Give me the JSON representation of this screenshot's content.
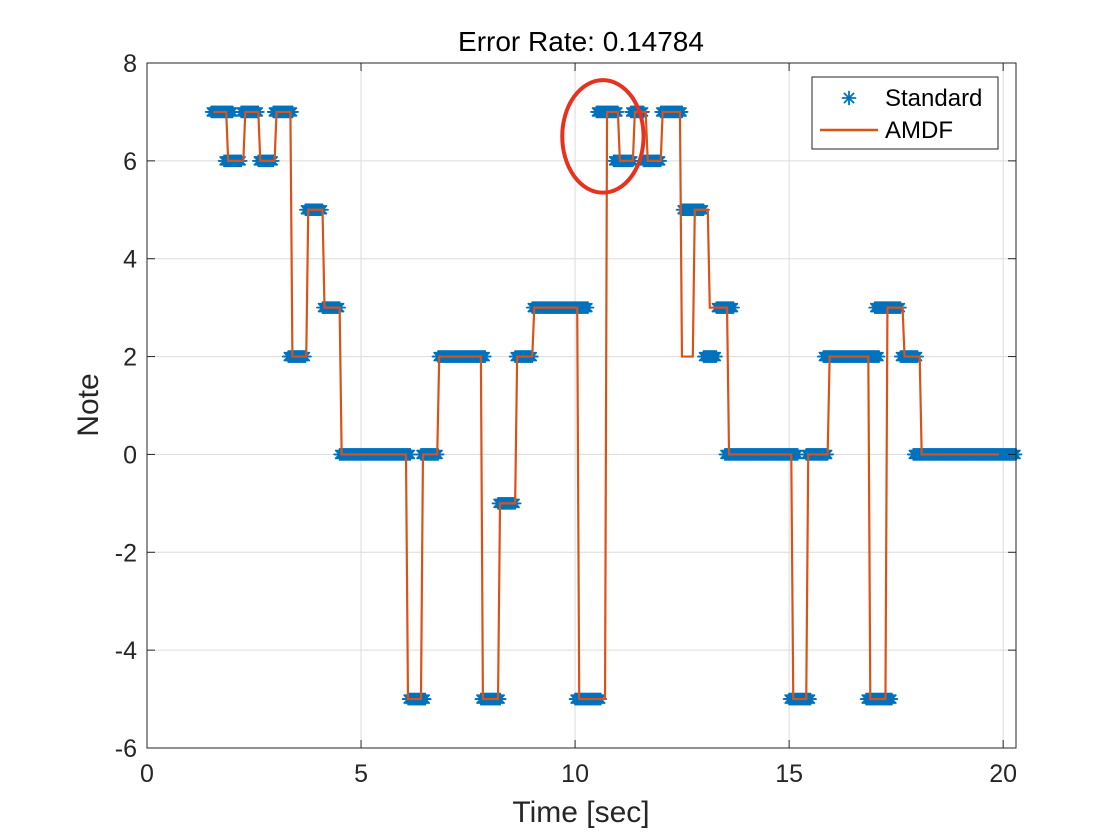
{
  "chart_data": {
    "type": "line",
    "title": "Error Rate: 0.14784",
    "xlabel": "Time [sec]",
    "ylabel": "Note",
    "xlim": [
      0,
      20.3
    ],
    "ylim": [
      -6,
      8
    ],
    "xticks": [
      0,
      5,
      10,
      15,
      20
    ],
    "yticks": [
      -6,
      -4,
      -2,
      0,
      2,
      4,
      6,
      8
    ],
    "xtick_labels": [
      "0",
      "5",
      "10",
      "15",
      "20"
    ],
    "ytick_labels": [
      "-6",
      "-4",
      "-2",
      "0",
      "2",
      "4",
      "6",
      "8"
    ],
    "grid": true,
    "legend_position": "top-right",
    "colors": {
      "standard": "#0072BD",
      "amdf": "#D95319",
      "highlight": "#e8321e"
    },
    "annotation": {
      "type": "ellipse",
      "center": [
        10.65,
        6.5
      ],
      "note_span": [
        0.95,
        1.15
      ]
    },
    "series": [
      {
        "name": "Standard",
        "marker": "asterisk",
        "segments": [
          [
            1.5,
            2.0,
            7
          ],
          [
            1.8,
            2.2,
            6
          ],
          [
            2.2,
            2.6,
            7
          ],
          [
            2.6,
            2.95,
            6
          ],
          [
            2.95,
            3.4,
            7
          ],
          [
            3.3,
            3.7,
            2
          ],
          [
            3.7,
            4.1,
            5
          ],
          [
            4.1,
            4.5,
            3
          ],
          [
            4.5,
            6.15,
            0
          ],
          [
            6.1,
            6.5,
            -5
          ],
          [
            6.4,
            6.8,
            0
          ],
          [
            6.8,
            7.9,
            2
          ],
          [
            7.8,
            8.25,
            -5
          ],
          [
            8.2,
            8.6,
            -1
          ],
          [
            8.6,
            9.0,
            2
          ],
          [
            9.0,
            10.3,
            3
          ],
          [
            10.0,
            10.6,
            -5
          ],
          [
            10.5,
            11.0,
            7
          ],
          [
            10.9,
            11.35,
            6
          ],
          [
            11.3,
            11.6,
            7
          ],
          [
            11.6,
            12.0,
            6
          ],
          [
            12.0,
            12.5,
            7
          ],
          [
            12.5,
            13.0,
            5
          ],
          [
            13.0,
            13.3,
            2
          ],
          [
            13.3,
            13.7,
            3
          ],
          [
            13.5,
            15.2,
            0
          ],
          [
            15.0,
            15.5,
            -5
          ],
          [
            15.4,
            15.9,
            0
          ],
          [
            15.8,
            17.1,
            2
          ],
          [
            16.8,
            17.4,
            -5
          ],
          [
            17.0,
            17.6,
            3
          ],
          [
            17.6,
            18.0,
            2
          ],
          [
            17.9,
            20.3,
            0
          ]
        ]
      },
      {
        "name": "AMDF",
        "steps": [
          [
            1.55,
            7
          ],
          [
            1.85,
            6
          ],
          [
            2.25,
            7
          ],
          [
            2.6,
            6
          ],
          [
            2.98,
            7
          ],
          [
            3.35,
            2
          ],
          [
            3.72,
            5
          ],
          [
            4.1,
            3
          ],
          [
            4.5,
            0
          ],
          [
            6.05,
            -5
          ],
          [
            6.4,
            0
          ],
          [
            6.78,
            2
          ],
          [
            7.8,
            -5
          ],
          [
            8.2,
            -1
          ],
          [
            8.6,
            2
          ],
          [
            9.0,
            3
          ],
          [
            10.05,
            -5
          ],
          [
            10.7,
            7
          ],
          [
            11.0,
            6
          ],
          [
            11.35,
            7
          ],
          [
            11.65,
            6
          ],
          [
            12.0,
            7
          ],
          [
            12.45,
            2
          ],
          [
            12.75,
            5
          ],
          [
            13.1,
            3
          ],
          [
            13.55,
            0
          ],
          [
            15.05,
            -5
          ],
          [
            15.4,
            0
          ],
          [
            15.9,
            2
          ],
          [
            16.85,
            -5
          ],
          [
            17.25,
            3
          ],
          [
            17.65,
            2
          ],
          [
            18.05,
            0
          ]
        ],
        "x_end": 19.9
      }
    ]
  }
}
